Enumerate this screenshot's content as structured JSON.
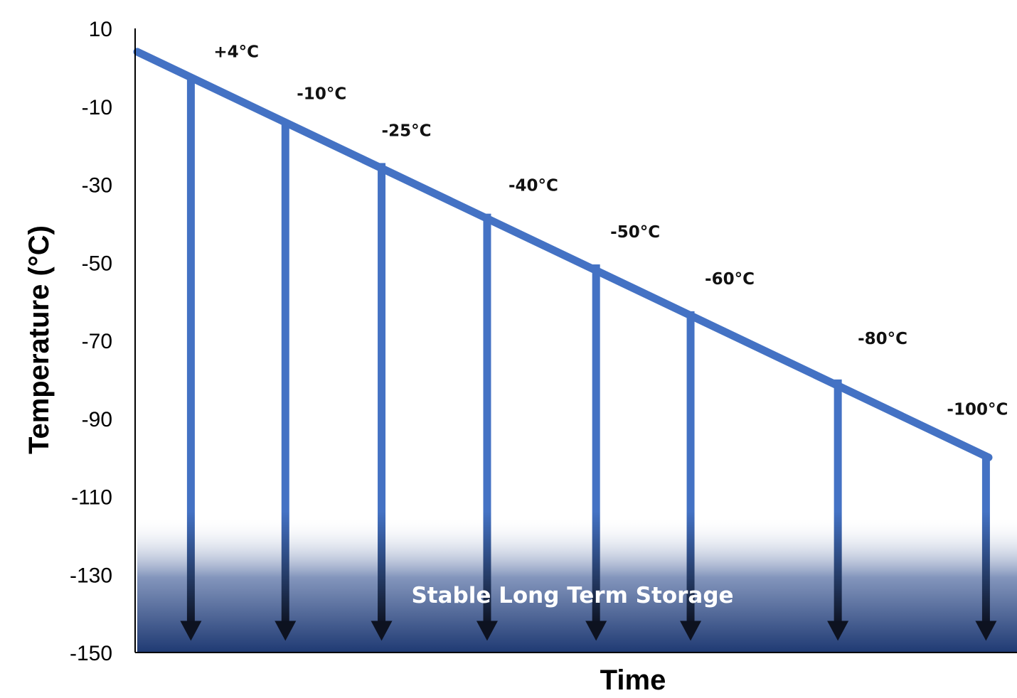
{
  "chart_data": {
    "type": "line",
    "xlabel": "Time",
    "ylabel": "Temperature (°C)",
    "ylim": [
      -150,
      10
    ],
    "yticks": [
      10,
      -10,
      -30,
      -50,
      -70,
      -90,
      -110,
      -130,
      -150
    ],
    "line": {
      "start": 4,
      "end": -100,
      "color": "#4472C4"
    },
    "points": [
      {
        "label": "+4°C",
        "t": 0.063,
        "y": -2.5
      },
      {
        "label": "-10°C",
        "t": 0.174,
        "y": -14.5
      },
      {
        "label": "-25°C",
        "t": 0.287,
        "y": -24.5
      },
      {
        "label": "-40°C",
        "t": 0.411,
        "y": -37.5
      },
      {
        "label": "-50°C",
        "t": 0.539,
        "y": -50.5
      },
      {
        "label": "-60°C",
        "t": 0.65,
        "y": -62.5
      },
      {
        "label": "-80°C",
        "t": 0.823,
        "y": -80
      },
      {
        "label": "-100°C",
        "t": 0.997,
        "y": -100
      }
    ],
    "zone": {
      "label": "Stable Long Term Storage",
      "from": -150,
      "to": -115,
      "color_dark": "#1F3A73"
    },
    "arrow_target": -147
  }
}
